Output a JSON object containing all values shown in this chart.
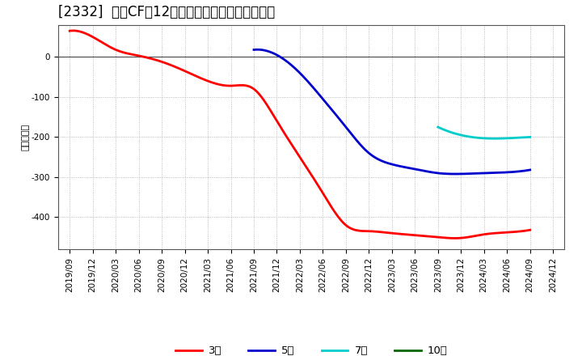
{
  "title": "[2332]  投賄CFだ12か月移動合計の平均値の推移",
  "ylabel": "（百万円）",
  "background_color": "#ffffff",
  "plot_bg_color": "#ffffff",
  "grid_color": "#aaaaaa",
  "ylim": [
    -480,
    80
  ],
  "yticks": [
    0,
    -100,
    -200,
    -300,
    -400
  ],
  "series": {
    "3年": {
      "color": "#ff0000",
      "dates": [
        "2019/09",
        "2019/12",
        "2020/03",
        "2020/06",
        "2020/09",
        "2020/12",
        "2021/03",
        "2021/06",
        "2021/09",
        "2021/12",
        "2022/03",
        "2022/06",
        "2022/09",
        "2022/12",
        "2023/03",
        "2023/06",
        "2023/09",
        "2023/12",
        "2024/03",
        "2024/06",
        "2024/09"
      ],
      "values": [
        65,
        50,
        18,
        3,
        -12,
        -35,
        -60,
        -72,
        -80,
        -160,
        -250,
        -340,
        -420,
        -435,
        -440,
        -445,
        -450,
        -452,
        -443,
        -438,
        -432
      ]
    },
    "5年": {
      "color": "#0000cc",
      "dates": [
        "2021/09",
        "2021/12",
        "2022/03",
        "2022/06",
        "2022/09",
        "2022/12",
        "2023/03",
        "2023/06",
        "2023/09",
        "2023/12",
        "2024/03",
        "2024/06",
        "2024/09"
      ],
      "values": [
        18,
        5,
        -40,
        -105,
        -175,
        -240,
        -268,
        -280,
        -290,
        -292,
        -290,
        -288,
        -282
      ]
    },
    "7年": {
      "color": "#00cccc",
      "dates": [
        "2023/09",
        "2023/12",
        "2024/03",
        "2024/06",
        "2024/09"
      ],
      "values": [
        -175,
        -195,
        -203,
        -203,
        -200
      ]
    },
    "10年": {
      "color": "#006600",
      "dates": [],
      "values": []
    }
  },
  "legend_entries": [
    "3年",
    "5年",
    "7年",
    "10年"
  ],
  "legend_colors": [
    "#ff0000",
    "#0000cc",
    "#00cccc",
    "#006600"
  ],
  "title_fontsize": 12,
  "tick_fontsize": 7.5,
  "ylabel_fontsize": 8
}
